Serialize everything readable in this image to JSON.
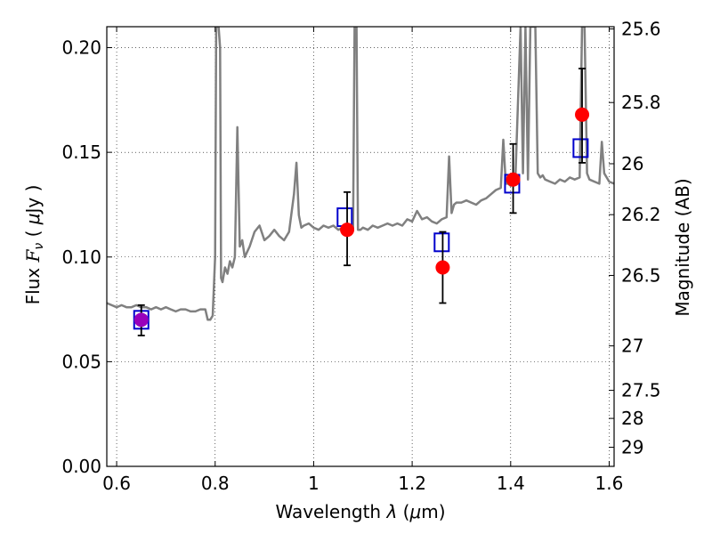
{
  "chart_data": {
    "type": "scatter",
    "title": "",
    "xlabel": "Wavelength  λ (μm)",
    "ylabel": "Flux  Fν  ( μJy )",
    "ylabel_right": "Magnitude (AB)",
    "xlim": [
      0.58,
      1.61
    ],
    "ylim": [
      0.0,
      0.21
    ],
    "grid": true,
    "grid_style": "dotted",
    "x_ticks": [
      {
        "value": 0.6,
        "label": "0.6"
      },
      {
        "value": 0.8,
        "label": "0.8"
      },
      {
        "value": 1.0,
        "label": "1"
      },
      {
        "value": 1.2,
        "label": "1.2"
      },
      {
        "value": 1.4,
        "label": "1.4"
      },
      {
        "value": 1.6,
        "label": "1.6"
      }
    ],
    "y_ticks": [
      {
        "value": 0.0,
        "label": "0.00"
      },
      {
        "value": 0.05,
        "label": "0.05"
      },
      {
        "value": 0.1,
        "label": "0.10"
      },
      {
        "value": 0.15,
        "label": "0.15"
      },
      {
        "value": 0.2,
        "label": "0.20"
      }
    ],
    "mag_ticks": [
      {
        "value": 25.6,
        "label": "25.6"
      },
      {
        "value": 25.8,
        "label": "25.8"
      },
      {
        "value": 26.0,
        "label": "26"
      },
      {
        "value": 26.2,
        "label": "26.2"
      },
      {
        "value": 26.5,
        "label": "26.5"
      },
      {
        "value": 27.0,
        "label": "27"
      },
      {
        "value": 27.5,
        "label": "27.5"
      },
      {
        "value": 28.0,
        "label": "28"
      },
      {
        "value": 29.0,
        "label": "29"
      }
    ],
    "spectrum": {
      "color": "#808080",
      "x": [
        0.58,
        0.59,
        0.6,
        0.61,
        0.62,
        0.63,
        0.64,
        0.65,
        0.66,
        0.67,
        0.68,
        0.69,
        0.7,
        0.71,
        0.72,
        0.73,
        0.74,
        0.75,
        0.76,
        0.77,
        0.78,
        0.785,
        0.79,
        0.795,
        0.8,
        0.802,
        0.805,
        0.807,
        0.81,
        0.812,
        0.815,
        0.82,
        0.825,
        0.83,
        0.835,
        0.84,
        0.845,
        0.85,
        0.855,
        0.86,
        0.87,
        0.88,
        0.89,
        0.9,
        0.91,
        0.92,
        0.93,
        0.94,
        0.95,
        0.96,
        0.965,
        0.97,
        0.975,
        0.98,
        0.99,
        1.0,
        1.01,
        1.02,
        1.03,
        1.04,
        1.05,
        1.06,
        1.07,
        1.075,
        1.08,
        1.083,
        1.085,
        1.087,
        1.09,
        1.095,
        1.1,
        1.11,
        1.12,
        1.13,
        1.14,
        1.15,
        1.16,
        1.17,
        1.18,
        1.19,
        1.2,
        1.21,
        1.22,
        1.23,
        1.24,
        1.25,
        1.26,
        1.27,
        1.275,
        1.28,
        1.285,
        1.29,
        1.3,
        1.31,
        1.32,
        1.33,
        1.34,
        1.35,
        1.36,
        1.37,
        1.38,
        1.385,
        1.39,
        1.395,
        1.4,
        1.41,
        1.42,
        1.425,
        1.43,
        1.435,
        1.44,
        1.45,
        1.455,
        1.46,
        1.465,
        1.47,
        1.48,
        1.49,
        1.5,
        1.51,
        1.52,
        1.53,
        1.54,
        1.545,
        1.55,
        1.555,
        1.56,
        1.57,
        1.58,
        1.585,
        1.59,
        1.6,
        1.61
      ],
      "y": [
        0.078,
        0.077,
        0.076,
        0.077,
        0.076,
        0.076,
        0.077,
        0.076,
        0.076,
        0.075,
        0.076,
        0.075,
        0.076,
        0.075,
        0.074,
        0.075,
        0.075,
        0.074,
        0.074,
        0.075,
        0.075,
        0.07,
        0.07,
        0.072,
        0.1,
        0.21,
        0.21,
        0.21,
        0.2,
        0.09,
        0.088,
        0.095,
        0.092,
        0.098,
        0.095,
        0.1,
        0.162,
        0.105,
        0.108,
        0.1,
        0.105,
        0.112,
        0.115,
        0.108,
        0.11,
        0.113,
        0.11,
        0.108,
        0.112,
        0.13,
        0.145,
        0.12,
        0.114,
        0.115,
        0.116,
        0.114,
        0.113,
        0.115,
        0.114,
        0.115,
        0.113,
        0.114,
        0.113,
        0.112,
        0.113,
        0.21,
        0.21,
        0.21,
        0.113,
        0.113,
        0.114,
        0.113,
        0.115,
        0.114,
        0.115,
        0.116,
        0.115,
        0.116,
        0.115,
        0.118,
        0.117,
        0.122,
        0.118,
        0.119,
        0.117,
        0.116,
        0.118,
        0.119,
        0.148,
        0.121,
        0.125,
        0.126,
        0.126,
        0.127,
        0.126,
        0.125,
        0.127,
        0.128,
        0.13,
        0.132,
        0.133,
        0.156,
        0.135,
        0.135,
        0.134,
        0.14,
        0.21,
        0.14,
        0.21,
        0.137,
        0.21,
        0.21,
        0.14,
        0.138,
        0.139,
        0.137,
        0.136,
        0.135,
        0.137,
        0.136,
        0.138,
        0.137,
        0.138,
        0.21,
        0.21,
        0.14,
        0.137,
        0.136,
        0.135,
        0.155,
        0.14,
        0.136,
        0.135
      ]
    },
    "measured": {
      "color": "#ff0000",
      "points": [
        {
          "x": 0.65,
          "y": 0.07,
          "yerr_low": 0.0075,
          "yerr_high": 0.007
        },
        {
          "x": 1.068,
          "y": 0.113,
          "yerr_low": 0.017,
          "yerr_high": 0.018
        },
        {
          "x": 1.262,
          "y": 0.095,
          "yerr_low": 0.017,
          "yerr_high": 0.017
        },
        {
          "x": 1.405,
          "y": 0.137,
          "yerr_low": 0.016,
          "yerr_high": 0.017
        },
        {
          "x": 1.545,
          "y": 0.168,
          "yerr_low": 0.023,
          "yerr_high": 0.022
        }
      ]
    },
    "model": {
      "color": "#0000cc",
      "points": [
        {
          "x": 0.65,
          "y": 0.07
        },
        {
          "x": 1.063,
          "y": 0.119
        },
        {
          "x": 1.26,
          "y": 0.107
        },
        {
          "x": 1.403,
          "y": 0.135
        },
        {
          "x": 1.542,
          "y": 0.152
        }
      ]
    },
    "overlap_color": "#9900bb"
  }
}
